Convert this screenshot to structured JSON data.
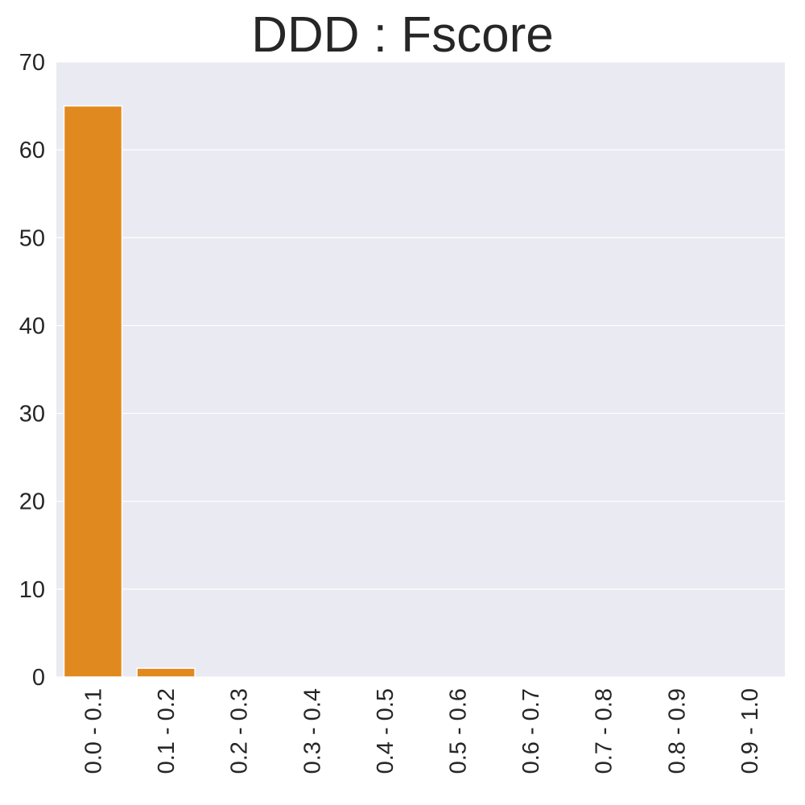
{
  "chart_data": {
    "type": "bar",
    "title": "DDD : Fscore",
    "xlabel": "",
    "ylabel": "",
    "categories": [
      "0.0 - 0.1",
      "0.1 - 0.2",
      "0.2 - 0.3",
      "0.3 - 0.4",
      "0.4 - 0.5",
      "0.5 - 0.6",
      "0.6 - 0.7",
      "0.7 - 0.8",
      "0.8 - 0.9",
      "0.9 - 1.0"
    ],
    "values": [
      65,
      1,
      0,
      0,
      0,
      0,
      0,
      0,
      0,
      0
    ],
    "ylim": [
      0,
      70
    ],
    "yticks": [
      0,
      10,
      20,
      30,
      40,
      50,
      60,
      70
    ],
    "grid": true,
    "bar_color": "#e0891f",
    "background_color": "#eaeaf2"
  }
}
